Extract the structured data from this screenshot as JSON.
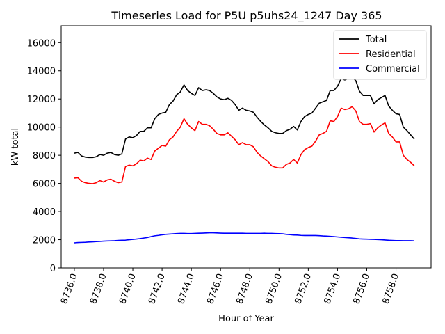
{
  "chart_data": {
    "type": "line",
    "title": "Timeseries Load for P5U p5uhs24_1247  Day 365",
    "xlabel": "Hour of Year",
    "ylabel": "kW total",
    "xlim": [
      8735.1,
      8760.4
    ],
    "ylim": [
      0,
      17200
    ],
    "xticks": [
      8736,
      8738,
      8740,
      8742,
      8744,
      8746,
      8748,
      8750,
      8752,
      8754,
      8756,
      8758
    ],
    "xtick_labels": [
      "8736.0",
      "8738.0",
      "8740.0",
      "8742.0",
      "8744.0",
      "8746.0",
      "8748.0",
      "8750.0",
      "8752.0",
      "8754.0",
      "8756.0",
      "8758.0"
    ],
    "yticks": [
      0,
      2000,
      4000,
      6000,
      8000,
      10000,
      12000,
      14000,
      16000
    ],
    "ytick_labels": [
      "0",
      "2000",
      "4000",
      "6000",
      "8000",
      "10000",
      "12000",
      "14000",
      "16000"
    ],
    "grid": false,
    "legend_position": "top-right",
    "x_start": 8736.0,
    "x_step": 0.25,
    "series": [
      {
        "name": "Total",
        "color": "#000000",
        "values": [
          8150,
          8200,
          7950,
          7870,
          7840,
          7840,
          7900,
          8050,
          8000,
          8150,
          8200,
          8050,
          8000,
          8100,
          9150,
          9300,
          9250,
          9400,
          9700,
          9700,
          9950,
          9950,
          10600,
          10900,
          11000,
          11050,
          11600,
          11850,
          12300,
          12500,
          13000,
          12600,
          12400,
          12250,
          12800,
          12600,
          12650,
          12600,
          12400,
          12150,
          12000,
          11950,
          12050,
          11900,
          11600,
          11200,
          11350,
          11200,
          11150,
          11050,
          10700,
          10400,
          10150,
          9950,
          9700,
          9600,
          9550,
          9550,
          9750,
          9850,
          10050,
          9800,
          10400,
          10750,
          10900,
          11000,
          11350,
          11700,
          11800,
          11900,
          12600,
          12600,
          12900,
          13450,
          13350,
          13450,
          13550,
          13300,
          12550,
          12250,
          12250,
          12250,
          11650,
          11950,
          12100,
          12250,
          11500,
          11200,
          10950,
          10900,
          10000,
          9750,
          9450,
          9150
        ]
      },
      {
        "name": "Residential",
        "color": "#ff0000",
        "values": [
          6380,
          6400,
          6150,
          6050,
          6000,
          5980,
          6050,
          6200,
          6100,
          6250,
          6300,
          6150,
          6050,
          6100,
          7200,
          7300,
          7250,
          7400,
          7650,
          7600,
          7800,
          7700,
          8300,
          8500,
          8700,
          8650,
          9100,
          9300,
          9700,
          10000,
          10600,
          10200,
          9950,
          9750,
          10400,
          10200,
          10200,
          10100,
          9850,
          9550,
          9450,
          9450,
          9600,
          9350,
          9100,
          8750,
          8900,
          8750,
          8750,
          8600,
          8200,
          7950,
          7750,
          7550,
          7250,
          7150,
          7100,
          7100,
          7350,
          7450,
          7700,
          7450,
          8050,
          8400,
          8550,
          8650,
          9000,
          9450,
          9550,
          9700,
          10450,
          10400,
          10750,
          11350,
          11250,
          11300,
          11450,
          11150,
          10400,
          10200,
          10200,
          10250,
          9650,
          9950,
          10150,
          10300,
          9550,
          9300,
          8950,
          8950,
          8000,
          7700,
          7500,
          7250
        ]
      },
      {
        "name": "Commercial",
        "color": "#0000ff",
        "values": [
          1780,
          1800,
          1810,
          1820,
          1840,
          1850,
          1870,
          1880,
          1900,
          1910,
          1920,
          1930,
          1950,
          1960,
          1970,
          2000,
          2020,
          2050,
          2080,
          2120,
          2160,
          2220,
          2280,
          2310,
          2350,
          2380,
          2400,
          2420,
          2440,
          2450,
          2450,
          2440,
          2440,
          2450,
          2460,
          2470,
          2480,
          2490,
          2490,
          2480,
          2470,
          2460,
          2460,
          2460,
          2460,
          2460,
          2460,
          2450,
          2450,
          2450,
          2450,
          2450,
          2460,
          2450,
          2450,
          2440,
          2430,
          2420,
          2380,
          2360,
          2340,
          2330,
          2310,
          2300,
          2300,
          2300,
          2300,
          2290,
          2270,
          2260,
          2240,
          2220,
          2200,
          2180,
          2160,
          2140,
          2120,
          2090,
          2060,
          2050,
          2040,
          2030,
          2020,
          2010,
          2000,
          1980,
          1960,
          1950,
          1940,
          1940,
          1930,
          1930,
          1930,
          1920
        ]
      }
    ]
  }
}
